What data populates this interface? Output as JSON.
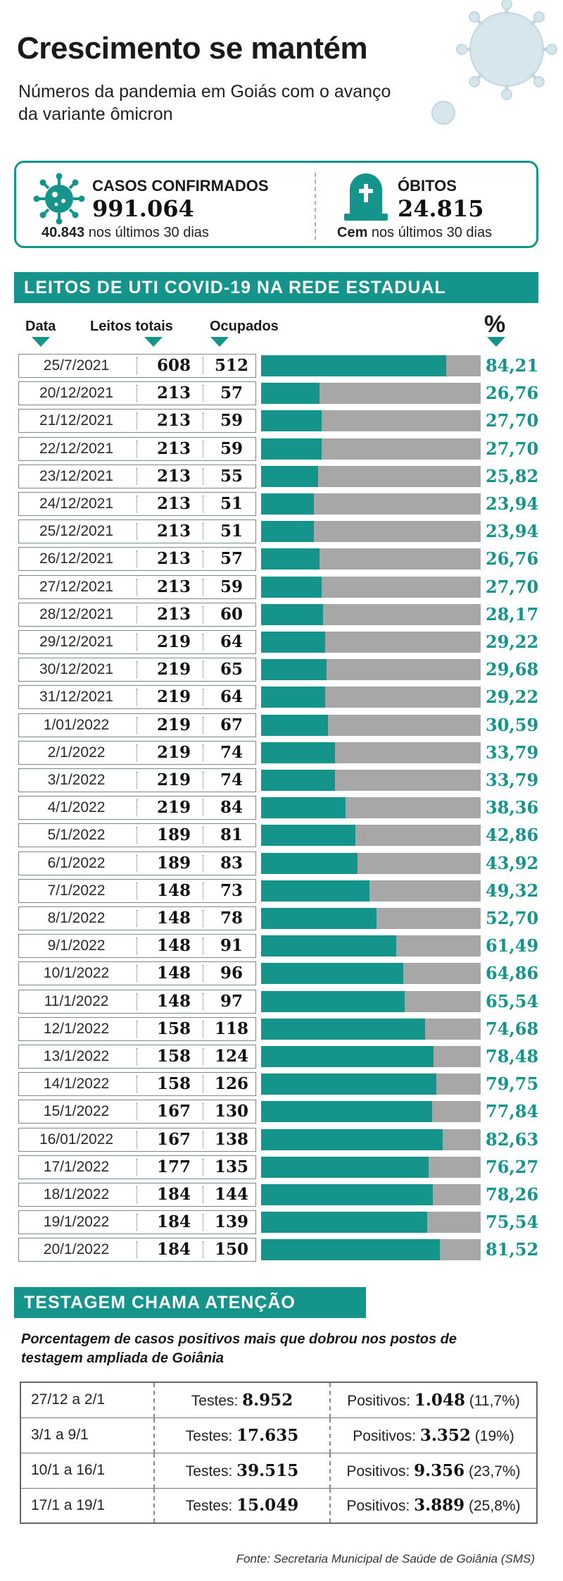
{
  "header": {
    "title": "Crescimento se mantém",
    "subtitle": "Números da pandemia em Goiás com o avanço da variante ômicron"
  },
  "stats": {
    "cases": {
      "label": "CASOS CONFIRMADOS",
      "value": "991.064",
      "recent_value": "40.843",
      "recent_text": " nos últimos 30 dias",
      "icon": "virus-icon"
    },
    "deaths": {
      "label": "ÓBITOS",
      "value": "24.815",
      "recent_value": "Cem",
      "recent_text": " nos últimos 30 dias",
      "icon": "tombstone-icon"
    }
  },
  "icu": {
    "section_title": "LEITOS DE UTI COVID-19 NA REDE ESTADUAL",
    "columns": {
      "date": "Data",
      "total": "Leitos totais",
      "occupied": "Ocupados",
      "percent": "%"
    }
  },
  "chart_data": {
    "type": "bar",
    "title": "LEITOS DE UTI COVID-19 NA REDE ESTADUAL",
    "ylim": [
      0,
      100
    ],
    "colors": {
      "occupied": "#14948a",
      "free": "#a7a7a7"
    },
    "rows": [
      {
        "date": "25/7/2021",
        "total": "608",
        "occupied": "512",
        "pct": "84,21",
        "value": 84.21
      },
      {
        "date": "20/12/2021",
        "total": "213",
        "occupied": "57",
        "pct": "26,76",
        "value": 26.76
      },
      {
        "date": "21/12/2021",
        "total": "213",
        "occupied": "59",
        "pct": "27,70",
        "value": 27.7
      },
      {
        "date": "22/12/2021",
        "total": "213",
        "occupied": "59",
        "pct": "27,70",
        "value": 27.7
      },
      {
        "date": "23/12/2021",
        "total": "213",
        "occupied": "55",
        "pct": "25,82",
        "value": 25.82
      },
      {
        "date": "24/12/2021",
        "total": "213",
        "occupied": "51",
        "pct": "23,94",
        "value": 23.94
      },
      {
        "date": "25/12/2021",
        "total": "213",
        "occupied": "51",
        "pct": "23,94",
        "value": 23.94
      },
      {
        "date": "26/12/2021",
        "total": "213",
        "occupied": "57",
        "pct": "26,76",
        "value": 26.76
      },
      {
        "date": "27/12/2021",
        "total": "213",
        "occupied": "59",
        "pct": "27,70",
        "value": 27.7
      },
      {
        "date": "28/12/2021",
        "total": "213",
        "occupied": "60",
        "pct": "28,17",
        "value": 28.17
      },
      {
        "date": "29/12/2021",
        "total": "219",
        "occupied": "64",
        "pct": "29,22",
        "value": 29.22
      },
      {
        "date": "30/12/2021",
        "total": "219",
        "occupied": "65",
        "pct": "29,68",
        "value": 29.68
      },
      {
        "date": "31/12/2021",
        "total": "219",
        "occupied": "64",
        "pct": "29,22",
        "value": 29.22
      },
      {
        "date": "1/01/2022",
        "total": "219",
        "occupied": "67",
        "pct": "30,59",
        "value": 30.59
      },
      {
        "date": "2/1/2022",
        "total": "219",
        "occupied": "74",
        "pct": "33,79",
        "value": 33.79
      },
      {
        "date": "3/1/2022",
        "total": "219",
        "occupied": "74",
        "pct": "33,79",
        "value": 33.79
      },
      {
        "date": "4/1/2022",
        "total": "219",
        "occupied": "84",
        "pct": "38,36",
        "value": 38.36
      },
      {
        "date": "5/1/2022",
        "total": "189",
        "occupied": "81",
        "pct": "42,86",
        "value": 42.86
      },
      {
        "date": "6/1/2022",
        "total": "189",
        "occupied": "83",
        "pct": "43,92",
        "value": 43.92
      },
      {
        "date": "7/1/2022",
        "total": "148",
        "occupied": "73",
        "pct": "49,32",
        "value": 49.32
      },
      {
        "date": "8/1/2022",
        "total": "148",
        "occupied": "78",
        "pct": "52,70",
        "value": 52.7
      },
      {
        "date": "9/1/2022",
        "total": "148",
        "occupied": "91",
        "pct": "61,49",
        "value": 61.49
      },
      {
        "date": "10/1/2022",
        "total": "148",
        "occupied": "96",
        "pct": "64,86",
        "value": 64.86
      },
      {
        "date": "11/1/2022",
        "total": "148",
        "occupied": "97",
        "pct": "65,54",
        "value": 65.54
      },
      {
        "date": "12/1/2022",
        "total": "158",
        "occupied": "118",
        "pct": "74,68",
        "value": 74.68
      },
      {
        "date": "13/1/2022",
        "total": "158",
        "occupied": "124",
        "pct": "78,48",
        "value": 78.48
      },
      {
        "date": "14/1/2022",
        "total": "158",
        "occupied": "126",
        "pct": "79,75",
        "value": 79.75
      },
      {
        "date": "15/1/2022",
        "total": "167",
        "occupied": "130",
        "pct": "77,84",
        "value": 77.84
      },
      {
        "date": "16/01/2022",
        "total": "167",
        "occupied": "138",
        "pct": "82,63",
        "value": 82.63
      },
      {
        "date": "17/1/2022",
        "total": "177",
        "occupied": "135",
        "pct": "76,27",
        "value": 76.27
      },
      {
        "date": "18/1/2022",
        "total": "184",
        "occupied": "144",
        "pct": "78,26",
        "value": 78.26
      },
      {
        "date": "19/1/2022",
        "total": "184",
        "occupied": "139",
        "pct": "75,54",
        "value": 75.54
      },
      {
        "date": "20/1/2022",
        "total": "184",
        "occupied": "150",
        "pct": "81,52",
        "value": 81.52
      }
    ]
  },
  "testing": {
    "section_title": "TESTAGEM CHAMA ATENÇÃO",
    "subtitle": "Porcentagem de casos positivos mais que dobrou nos postos de testagem ampliada de Goiânia",
    "rows": [
      {
        "period": "27/12 a 2/1",
        "tests_label": "Testes: ",
        "tests": "8.952",
        "pos_label": "Positivos: ",
        "positives": "1.048",
        "pct": " (11,7%)"
      },
      {
        "period": "3/1 a 9/1",
        "tests_label": "Testes: ",
        "tests": "17.635",
        "pos_label": "Positivos: ",
        "positives": "3.352",
        "pct": " (19%)"
      },
      {
        "period": "10/1 a 16/1",
        "tests_label": "Testes: ",
        "tests": "39.515",
        "pos_label": "Positivos: ",
        "positives": "9.356",
        "pct": " (23,7%)"
      },
      {
        "period": "17/1 a 19/1",
        "tests_label": "Testes: ",
        "tests": "15.049",
        "pos_label": "Positivos: ",
        "positives": "3.889",
        "pct": " (25,8%)"
      }
    ],
    "source": "Fonte: Secretaria Municipal de Saúde de Goiânia (SMS)"
  }
}
